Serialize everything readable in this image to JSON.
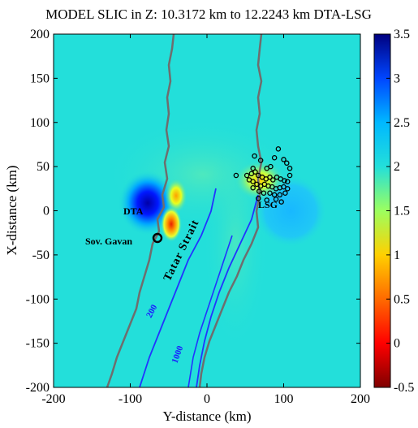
{
  "chart_data": {
    "type": "heatmap",
    "title": "MODEL SLIC in  Z: 10.3172 km to 12.2243 km  DTA-LSG",
    "xlabel": "Y-distance (km)",
    "ylabel": "X-distance (km)",
    "xlim": [
      -200,
      200
    ],
    "ylim": [
      -200,
      200
    ],
    "xticks": [
      "-200",
      "-100",
      "0",
      "100",
      "200"
    ],
    "yticks": [
      "200",
      "150",
      "100",
      "50",
      "0",
      "-50",
      "-100",
      "-150",
      "-200"
    ],
    "colorbar": {
      "ticks": [
        "3.5",
        "3",
        "2.5",
        "2",
        "1.5",
        "1",
        "0.5",
        "0",
        "-0.5"
      ],
      "range": [
        -0.5,
        3.5
      ]
    },
    "background_value": 2.0,
    "anomalies": [
      {
        "x": -75,
        "y": 5,
        "value": 3.2
      },
      {
        "x": -42,
        "y": 15,
        "value": 1.1
      },
      {
        "x": -45,
        "y": -20,
        "value": 0.6
      },
      {
        "x": 60,
        "y": 35,
        "value": 1.3
      },
      {
        "x": 95,
        "y": 0,
        "value": 2.1
      }
    ],
    "annotations": {
      "dta": "DTA",
      "lsg": "LSG",
      "sov_gavan": "Sov. Gavan",
      "strait": "Tatar Strait",
      "contour_200": "200",
      "contour_1000": "1000"
    },
    "stations": [
      [
        62,
        62
      ],
      [
        70,
        57
      ],
      [
        78,
        48
      ],
      [
        83,
        50
      ],
      [
        88,
        60
      ],
      [
        93,
        70
      ],
      [
        100,
        58
      ],
      [
        104,
        54
      ],
      [
        108,
        48
      ],
      [
        52,
        40
      ],
      [
        58,
        42
      ],
      [
        63,
        44
      ],
      [
        67,
        40
      ],
      [
        72,
        38
      ],
      [
        77,
        36
      ],
      [
        82,
        38
      ],
      [
        86,
        35
      ],
      [
        91,
        38
      ],
      [
        96,
        36
      ],
      [
        101,
        34
      ],
      [
        105,
        33
      ],
      [
        55,
        35
      ],
      [
        60,
        33
      ],
      [
        65,
        30
      ],
      [
        70,
        28
      ],
      [
        75,
        30
      ],
      [
        80,
        28
      ],
      [
        85,
        27
      ],
      [
        90,
        25
      ],
      [
        95,
        26
      ],
      [
        100,
        27
      ],
      [
        105,
        25
      ],
      [
        60,
        26
      ],
      [
        68,
        22
      ],
      [
        74,
        20
      ],
      [
        82,
        20
      ],
      [
        88,
        18
      ],
      [
        95,
        18
      ],
      [
        102,
        20
      ],
      [
        67,
        14
      ],
      [
        78,
        12
      ],
      [
        90,
        13
      ],
      [
        97,
        10
      ],
      [
        38,
        40
      ],
      [
        60,
        48
      ],
      [
        108,
        40
      ]
    ],
    "colors": {
      "background": "#23dfda",
      "coast": "#6e6e6e",
      "bathymetry": "#2233ff"
    }
  }
}
